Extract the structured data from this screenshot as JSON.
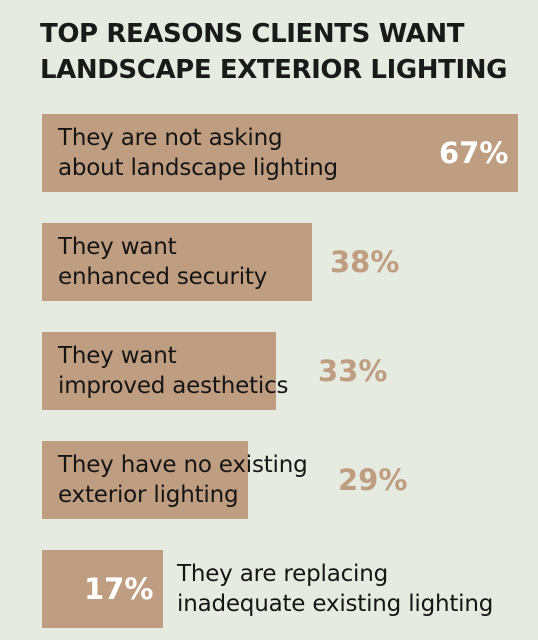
{
  "chart_data": {
    "type": "bar",
    "orientation": "horizontal",
    "title": [
      "TOP REASONS CLIENTS WANT",
      "LANDSCAPE EXTERIOR LIGHTING"
    ],
    "xlim": [
      0,
      67
    ],
    "bar_color": "#bf9d81",
    "background_color": "#e6ebe1",
    "inside_value_color": "#ffffff",
    "outside_value_color": "#bf9d81",
    "categories": [
      [
        "They are not asking",
        "about landscape lighting"
      ],
      [
        "They want",
        "enhanced security"
      ],
      [
        "They want",
        "improved aesthetics"
      ],
      [
        "They have no existing",
        "exterior lighting"
      ],
      [
        "They are replacing",
        "inadequate existing lighting"
      ]
    ],
    "values": [
      67,
      38,
      33,
      29,
      17
    ],
    "value_labels": [
      "67%",
      "38%",
      "33%",
      "29%",
      "17%"
    ]
  }
}
